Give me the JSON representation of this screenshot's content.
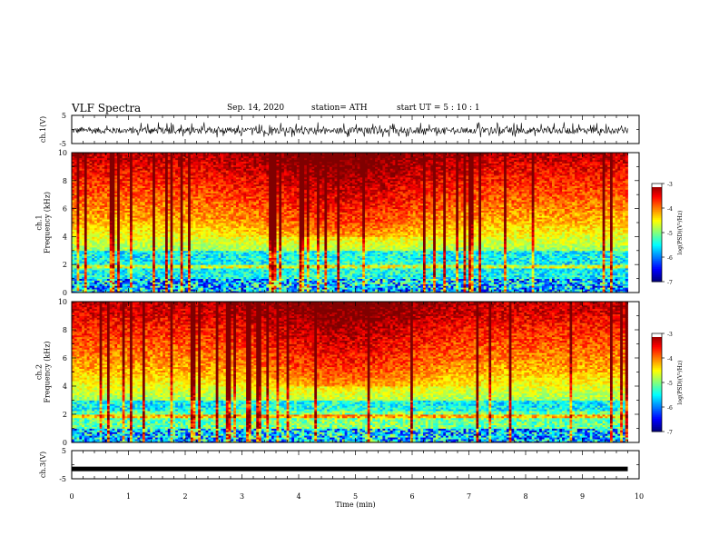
{
  "header": {
    "title": "VLF Spectra",
    "date": "Sep. 14, 2020",
    "station": "station= ATH",
    "start": "start UT = 5 : 10 : 1"
  },
  "chart_data": [
    {
      "type": "line",
      "ylabel": "ch.1(V)",
      "xlim": [
        0,
        10
      ],
      "ylim": [
        -5,
        5
      ],
      "yticks": [
        "5",
        "-5"
      ],
      "series": [
        {
          "values_range": [
            -2.8,
            2.6
          ],
          "mean": -0.4
        }
      ]
    },
    {
      "type": "heatmap",
      "ylabel": "ch.1\nFrequency (kHz)",
      "xlim": [
        0,
        9.8
      ],
      "ylim": [
        0,
        10
      ],
      "yticks": [
        "0",
        "2",
        "4",
        "6",
        "8",
        "10"
      ],
      "colorbar": {
        "label": "log(PSD)(V²/Hz)",
        "range": [
          -7,
          -3
        ],
        "ticks": [
          "-3",
          "-4",
          "-5",
          "-6",
          "-7"
        ]
      }
    },
    {
      "type": "heatmap",
      "ylabel": "ch.2\nFrequency (kHz)",
      "xlim": [
        0,
        9.8
      ],
      "ylim": [
        0,
        10
      ],
      "yticks": [
        "0",
        "2",
        "4",
        "6",
        "8",
        "10"
      ],
      "colorbar": {
        "label": "log(PSD)(V²/Hz)",
        "range": [
          -7,
          -3
        ],
        "ticks": [
          "-3",
          "-4",
          "-5",
          "-6",
          "-7"
        ]
      }
    },
    {
      "type": "line",
      "ylabel": "ch.3(V)",
      "xlim": [
        0,
        10
      ],
      "ylim": [
        -5,
        5
      ],
      "yticks": [
        "5",
        "-5"
      ],
      "series": [
        {
          "values": [
            -1.5
          ],
          "constant": true
        }
      ]
    }
  ],
  "xaxis": {
    "label": "Time (min)",
    "ticks": [
      "0",
      "1",
      "2",
      "3",
      "4",
      "5",
      "6",
      "7",
      "8",
      "9",
      "10"
    ],
    "range": [
      0,
      10
    ]
  }
}
